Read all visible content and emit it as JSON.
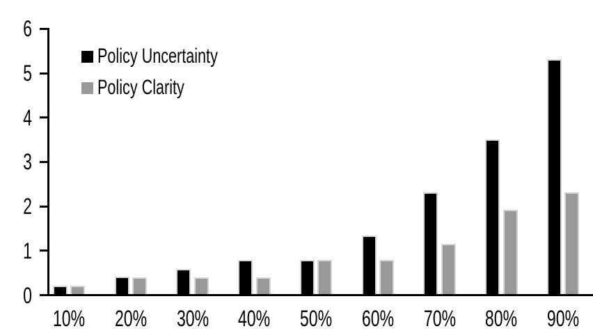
{
  "chart_data": {
    "type": "bar",
    "title": "",
    "xlabel": "",
    "ylabel": "",
    "categories": [
      "10%",
      "20%",
      "30%",
      "40%",
      "50%",
      "60%",
      "70%",
      "80%",
      "90%"
    ],
    "series": [
      {
        "name": "Policy Uncertainty",
        "color": "#000000",
        "values": [
          0.2,
          0.4,
          0.57,
          0.77,
          0.78,
          1.33,
          2.3,
          3.5,
          5.3
        ]
      },
      {
        "name": "Policy Clarity",
        "color": "#999999",
        "values": [
          0.2,
          0.39,
          0.39,
          0.39,
          0.77,
          0.77,
          1.14,
          1.9,
          2.3
        ]
      }
    ],
    "ylim": [
      0,
      6
    ],
    "yticks": [
      0,
      1,
      2,
      3,
      4,
      5,
      6
    ],
    "grid": false,
    "legend_position": "top-left-inside",
    "colors": {
      "axis": "#000000",
      "bar_border": "#d6d6d6",
      "background": "#ffffff",
      "text": "#000000"
    }
  }
}
